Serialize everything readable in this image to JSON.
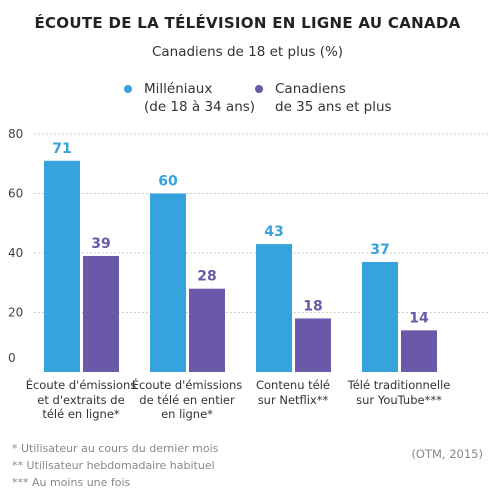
{
  "chart_data": {
    "type": "bar",
    "title": "ÉCOUTE DE LA TÉLÉVISION EN LIGNE AU CANADA",
    "subtitle": "Canadiens de 18 et plus (%)",
    "categories": [
      "Écoute d'émissions\net d'extraits de\ntélé en ligne*",
      "Écoute d'émissions\nde télé en entier\nen ligne*",
      "Contenu télé\nsur Netflix**",
      "Télé traditionnelle\nsur YouTube***"
    ],
    "series": [
      {
        "name": "Milléniaux\n(de 18 à 34 ans)",
        "values": [
          71,
          60,
          43,
          37
        ],
        "color": "#36a3dc"
      },
      {
        "name": "Canadiens\nde 35 ans et plus",
        "values": [
          39,
          28,
          18,
          14
        ],
        "color": "#6a58a8"
      }
    ],
    "ylim": [
      0,
      80
    ],
    "yticks": [
      "0",
      "20",
      "40",
      "60",
      "80"
    ],
    "grid": true,
    "legend_position": "top"
  },
  "footnotes": [
    "* Utilisateur au cours du dernier mois",
    "** Utilisateur hebdomadaire habituel",
    "*** Au moins une fois"
  ],
  "source": "(OTM, 2015)"
}
